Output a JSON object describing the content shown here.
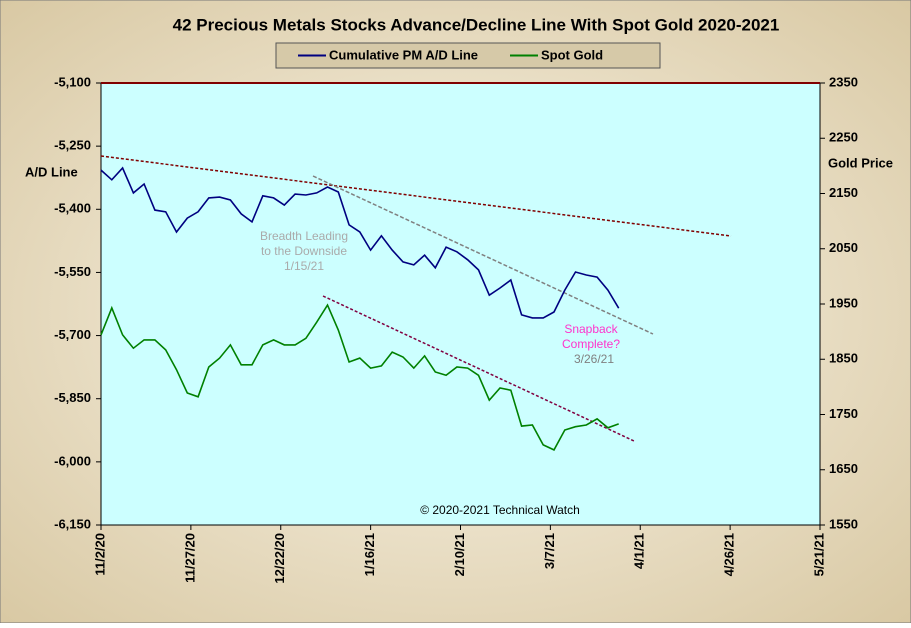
{
  "chart_data": {
    "type": "line",
    "title": "42 Precious Metals Stocks Advance/Decline Line With Spot Gold 2020-2021",
    "y_label": "A/D Line",
    "y2_label": "Gold Price",
    "annotations": [
      {
        "lines": [
          "Breadth Leading",
          "to the Downside",
          "1/15/21"
        ]
      },
      {
        "lines": [
          "Snapback",
          "Complete?"
        ],
        "date": "3/26/21"
      }
    ],
    "credit": "© 2020-2021 Technical Watch",
    "x": [
      "2020-11-02",
      "2020-11-05",
      "2020-11-08",
      "2020-11-11",
      "2020-11-14",
      "2020-11-17",
      "2020-11-20",
      "2020-11-23",
      "2020-11-26",
      "2020-11-29",
      "2020-12-02",
      "2020-12-05",
      "2020-12-08",
      "2020-12-11",
      "2020-12-14",
      "2020-12-17",
      "2020-12-20",
      "2020-12-23",
      "2020-12-26",
      "2020-12-29",
      "2021-01-01",
      "2021-01-04",
      "2021-01-07",
      "2021-01-10",
      "2021-01-13",
      "2021-01-16",
      "2021-01-19",
      "2021-01-22",
      "2021-01-25",
      "2021-01-28",
      "2021-01-31",
      "2021-02-03",
      "2021-02-06",
      "2021-02-09",
      "2021-02-12",
      "2021-02-15",
      "2021-02-18",
      "2021-02-21",
      "2021-02-24",
      "2021-02-27",
      "2021-03-02",
      "2021-03-05",
      "2021-03-08",
      "2021-03-11",
      "2021-03-14",
      "2021-03-17",
      "2021-03-20",
      "2021-03-23",
      "2021-03-26"
    ],
    "series": [
      {
        "name": "Cumulative PM A/D Line",
        "color": "#000080",
        "values": [
          -5307,
          -5330,
          -5302,
          -5361,
          -5340,
          -5402,
          -5406,
          -5454,
          -5421,
          -5406,
          -5373,
          -5371,
          -5378,
          -5411,
          -5430,
          -5368,
          -5373,
          -5390,
          -5364,
          -5366,
          -5361,
          -5347,
          -5359,
          -5437,
          -5454,
          -5497,
          -5463,
          -5497,
          -5525,
          -5532,
          -5509,
          -5539,
          -5490,
          -5501,
          -5520,
          -5544,
          -5604,
          -5587,
          -5568,
          -5651,
          -5658,
          -5658,
          -5644,
          -5592,
          -5549,
          -5556,
          -5561,
          -5592,
          -5635
        ]
      },
      {
        "name": "Spot Gold",
        "color": "#008000",
        "axis": "y2",
        "values": [
          1894,
          1943,
          1894,
          1870,
          1885,
          1885,
          1867,
          1831,
          1789,
          1782,
          1836,
          1852,
          1876,
          1840,
          1840,
          1876,
          1885,
          1876,
          1876,
          1888,
          1917,
          1948,
          1903,
          1845,
          1852,
          1834,
          1838,
          1863,
          1854,
          1834,
          1856,
          1827,
          1821,
          1836,
          1834,
          1821,
          1776,
          1798,
          1794,
          1729,
          1731,
          1695,
          1686,
          1722,
          1728,
          1731,
          1742,
          1726,
          1733
        ]
      }
    ],
    "xlim": [
      "2020-11-02",
      "2021-05-21"
    ],
    "xticks": [
      {
        "value": "2020-11-02",
        "label": "11/2/20"
      },
      {
        "value": "2020-11-27",
        "label": "11/27/20"
      },
      {
        "value": "2020-12-22",
        "label": "12/22/20"
      },
      {
        "value": "2021-01-16",
        "label": "1/16/21"
      },
      {
        "value": "2021-02-10",
        "label": "2/10/21"
      },
      {
        "value": "2021-03-07",
        "label": "3/7/21"
      },
      {
        "value": "2021-04-01",
        "label": "4/1/21"
      },
      {
        "value": "2021-04-26",
        "label": "4/26/21"
      },
      {
        "value": "2021-05-21",
        "label": "5/21/21"
      }
    ],
    "ylim": [
      -6150,
      -5100
    ],
    "yticks": [
      {
        "value": -5100,
        "label": "-5,100"
      },
      {
        "value": -5250,
        "label": "-5,250"
      },
      {
        "value": -5400,
        "label": "-5,400"
      },
      {
        "value": -5550,
        "label": "-5,550"
      },
      {
        "value": -5700,
        "label": "-5,700"
      },
      {
        "value": -5850,
        "label": "-5,850"
      },
      {
        "value": -6000,
        "label": "-6,000"
      },
      {
        "value": -6150,
        "label": "-6,150"
      }
    ],
    "y2lim": [
      1550,
      2350
    ],
    "y2ticks": [
      1550,
      1650,
      1750,
      1850,
      1950,
      2050,
      2150,
      2250,
      2350
    ]
  }
}
